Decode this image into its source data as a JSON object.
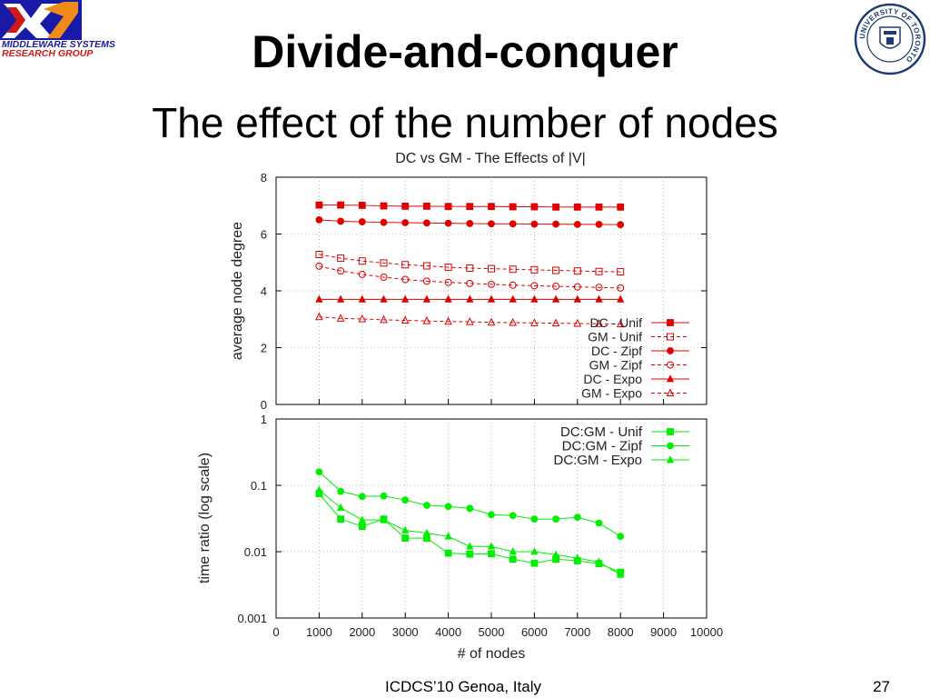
{
  "header": {
    "group_line1": "MIDDLEWARE SYSTEMS",
    "group_line2": "RESEARCH GROUP",
    "seal_text": "UNIVERSITY OF TORONTO"
  },
  "slide": {
    "title": "Divide-and-conquer",
    "subtitle": "The effect of the number of nodes"
  },
  "footer": {
    "venue": "ICDCS’10 Genoa, Italy",
    "page": "27"
  },
  "colors": {
    "red": "#e00000",
    "green": "#00ee00",
    "logo_blue": "#1a1aa8",
    "logo_orange": "#f08a18"
  },
  "chart_data": [
    {
      "type": "line",
      "title": "DC vs GM - The Effects of |V|",
      "xlabel": "",
      "ylabel": "average node degree",
      "ylim": [
        0,
        8
      ],
      "yticks": [
        "0",
        "2",
        "4",
        "6",
        "8"
      ],
      "legend_position": "bottom-right",
      "x": [
        1000,
        1500,
        2000,
        2500,
        3000,
        3500,
        4000,
        4500,
        5000,
        5500,
        6000,
        6500,
        7000,
        7500,
        8000
      ],
      "series": [
        {
          "name": "DC - Unif",
          "marker": "square-filled",
          "dashed": false,
          "values": [
            7.02,
            7.02,
            7.01,
            6.99,
            6.98,
            6.98,
            6.97,
            6.97,
            6.97,
            6.96,
            6.96,
            6.95,
            6.95,
            6.95,
            6.95
          ]
        },
        {
          "name": "GM - Unif",
          "marker": "square-open",
          "dashed": true,
          "values": [
            5.28,
            5.15,
            5.05,
            4.98,
            4.92,
            4.88,
            4.83,
            4.8,
            4.78,
            4.76,
            4.74,
            4.72,
            4.7,
            4.68,
            4.67
          ]
        },
        {
          "name": "DC - Zipf",
          "marker": "circle-filled",
          "dashed": false,
          "values": [
            6.5,
            6.45,
            6.43,
            6.41,
            6.4,
            6.39,
            6.38,
            6.37,
            6.36,
            6.36,
            6.35,
            6.35,
            6.34,
            6.34,
            6.33
          ]
        },
        {
          "name": "GM - Zipf",
          "marker": "circle-open",
          "dashed": true,
          "values": [
            4.87,
            4.7,
            4.58,
            4.48,
            4.4,
            4.34,
            4.3,
            4.26,
            4.23,
            4.2,
            4.18,
            4.16,
            4.14,
            4.12,
            4.1
          ]
        },
        {
          "name": "DC - Expo",
          "marker": "triangle-filled",
          "dashed": false,
          "values": [
            3.7,
            3.7,
            3.7,
            3.7,
            3.7,
            3.7,
            3.7,
            3.7,
            3.7,
            3.7,
            3.7,
            3.7,
            3.7,
            3.7,
            3.7
          ]
        },
        {
          "name": "GM - Expo",
          "marker": "triangle-open",
          "dashed": true,
          "values": [
            3.08,
            3.03,
            3.01,
            2.98,
            2.96,
            2.94,
            2.92,
            2.91,
            2.89,
            2.88,
            2.87,
            2.86,
            2.85,
            2.84,
            2.83
          ]
        }
      ]
    },
    {
      "type": "line",
      "xlabel": "# of nodes",
      "ylabel": "time ratio (log scale)",
      "yscale": "log",
      "ylim": [
        0.001,
        1
      ],
      "xlim": [
        0,
        10000
      ],
      "yticks": [
        "0.001",
        "0.01",
        "0.1",
        "1"
      ],
      "xticks": [
        "0",
        "1000",
        "2000",
        "3000",
        "4000",
        "5000",
        "6000",
        "7000",
        "8000",
        "9000",
        "10000"
      ],
      "legend_position": "top-right",
      "x": [
        1000,
        1500,
        2000,
        2500,
        3000,
        3500,
        4000,
        4500,
        5000,
        5500,
        6000,
        6500,
        7000,
        7500,
        8000
      ],
      "series": [
        {
          "name": "DC:GM - Unif",
          "marker": "square-filled",
          "values": [
            0.075,
            0.031,
            0.024,
            0.031,
            0.016,
            0.016,
            0.0095,
            0.0092,
            0.0093,
            0.0077,
            0.0067,
            0.0077,
            0.0073,
            0.0066,
            0.0049
          ]
        },
        {
          "name": "DC:GM - Zipf",
          "marker": "circle-filled",
          "values": [
            0.16,
            0.081,
            0.068,
            0.069,
            0.06,
            0.05,
            0.048,
            0.045,
            0.036,
            0.035,
            0.031,
            0.031,
            0.033,
            0.027,
            0.017
          ]
        },
        {
          "name": "DC:GM - Expo",
          "marker": "triangle-filled",
          "values": [
            0.085,
            0.046,
            0.03,
            0.03,
            0.021,
            0.019,
            0.017,
            0.012,
            0.012,
            0.01,
            0.01,
            0.009,
            0.008,
            0.007,
            0.0045
          ]
        }
      ]
    }
  ]
}
